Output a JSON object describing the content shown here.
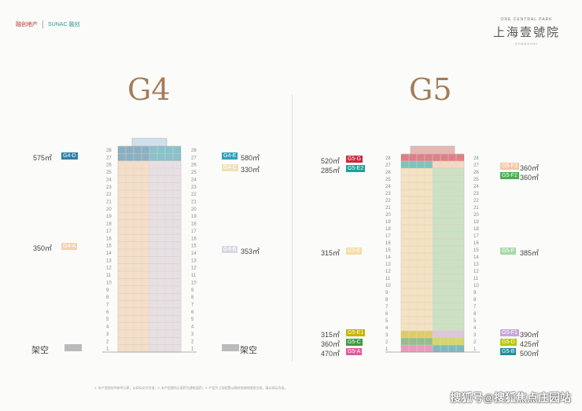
{
  "header": {
    "logo_left": "融创地产",
    "logo_sunac": "SUNAC 融创",
    "brand_small": "ONE CENTRAL PARK",
    "brand_title": "上海壹號院",
    "brand_tiny": "SHANGHAI"
  },
  "towers": [
    {
      "title": "G4",
      "floors": 28,
      "ground_label": "架空",
      "left_units": [
        {
          "size": "575㎡",
          "code": "G4-D",
          "color": "#2f7fa6"
        },
        {
          "size": "350㎡",
          "code": "G4-A",
          "color": "#f1d3b3"
        }
      ],
      "right_units": [
        {
          "size": "580㎡",
          "code": "G4-E",
          "color": "#2f9fb8"
        },
        {
          "size": "330㎡",
          "code": "G4-C",
          "color": "#efe0b5"
        },
        {
          "size": "353㎡",
          "code": "G4-B",
          "color": "#d9d7e6"
        }
      ]
    },
    {
      "title": "G5",
      "floors": 28,
      "left_units": [
        {
          "size": "520㎡",
          "code": "G5-G",
          "color": "#c8283c"
        },
        {
          "size": "285㎡",
          "code": "G5-E2",
          "color": "#1aa39a"
        },
        {
          "size": "315㎡",
          "code": "G5-E",
          "color": "#f3dca6"
        },
        {
          "size": "315㎡",
          "code": "G5-E1",
          "color": "#c9b300"
        },
        {
          "size": "360㎡",
          "code": "G5-C",
          "color": "#3f9a46"
        },
        {
          "size": "470㎡",
          "code": "G5-A",
          "color": "#e05a9a"
        }
      ],
      "right_units": [
        {
          "size": "360㎡",
          "code": "G5-F3",
          "color": "#f3c8a8"
        },
        {
          "size": "360㎡",
          "code": "G5-F2",
          "color": "#4cae50"
        },
        {
          "size": "385㎡",
          "code": "G5-F",
          "color": "#a7d8a9"
        },
        {
          "size": "390㎡",
          "code": "G5-F1",
          "color": "#c6a7d6"
        },
        {
          "size": "425㎡",
          "code": "G5-D",
          "color": "#b6c900"
        },
        {
          "size": "500㎡",
          "code": "G5-B",
          "color": "#1f8f9a"
        }
      ]
    }
  ],
  "footer": {
    "note": "1. 本户型图仅供参考示意，以实际交付为准；2. 本户型图所示面积为建筑面积；3. 户型尺寸及配置以政府批准的图纸为准，请以实际为准。"
  },
  "watermark": "搜狐号@搜狐焦点庄园站"
}
